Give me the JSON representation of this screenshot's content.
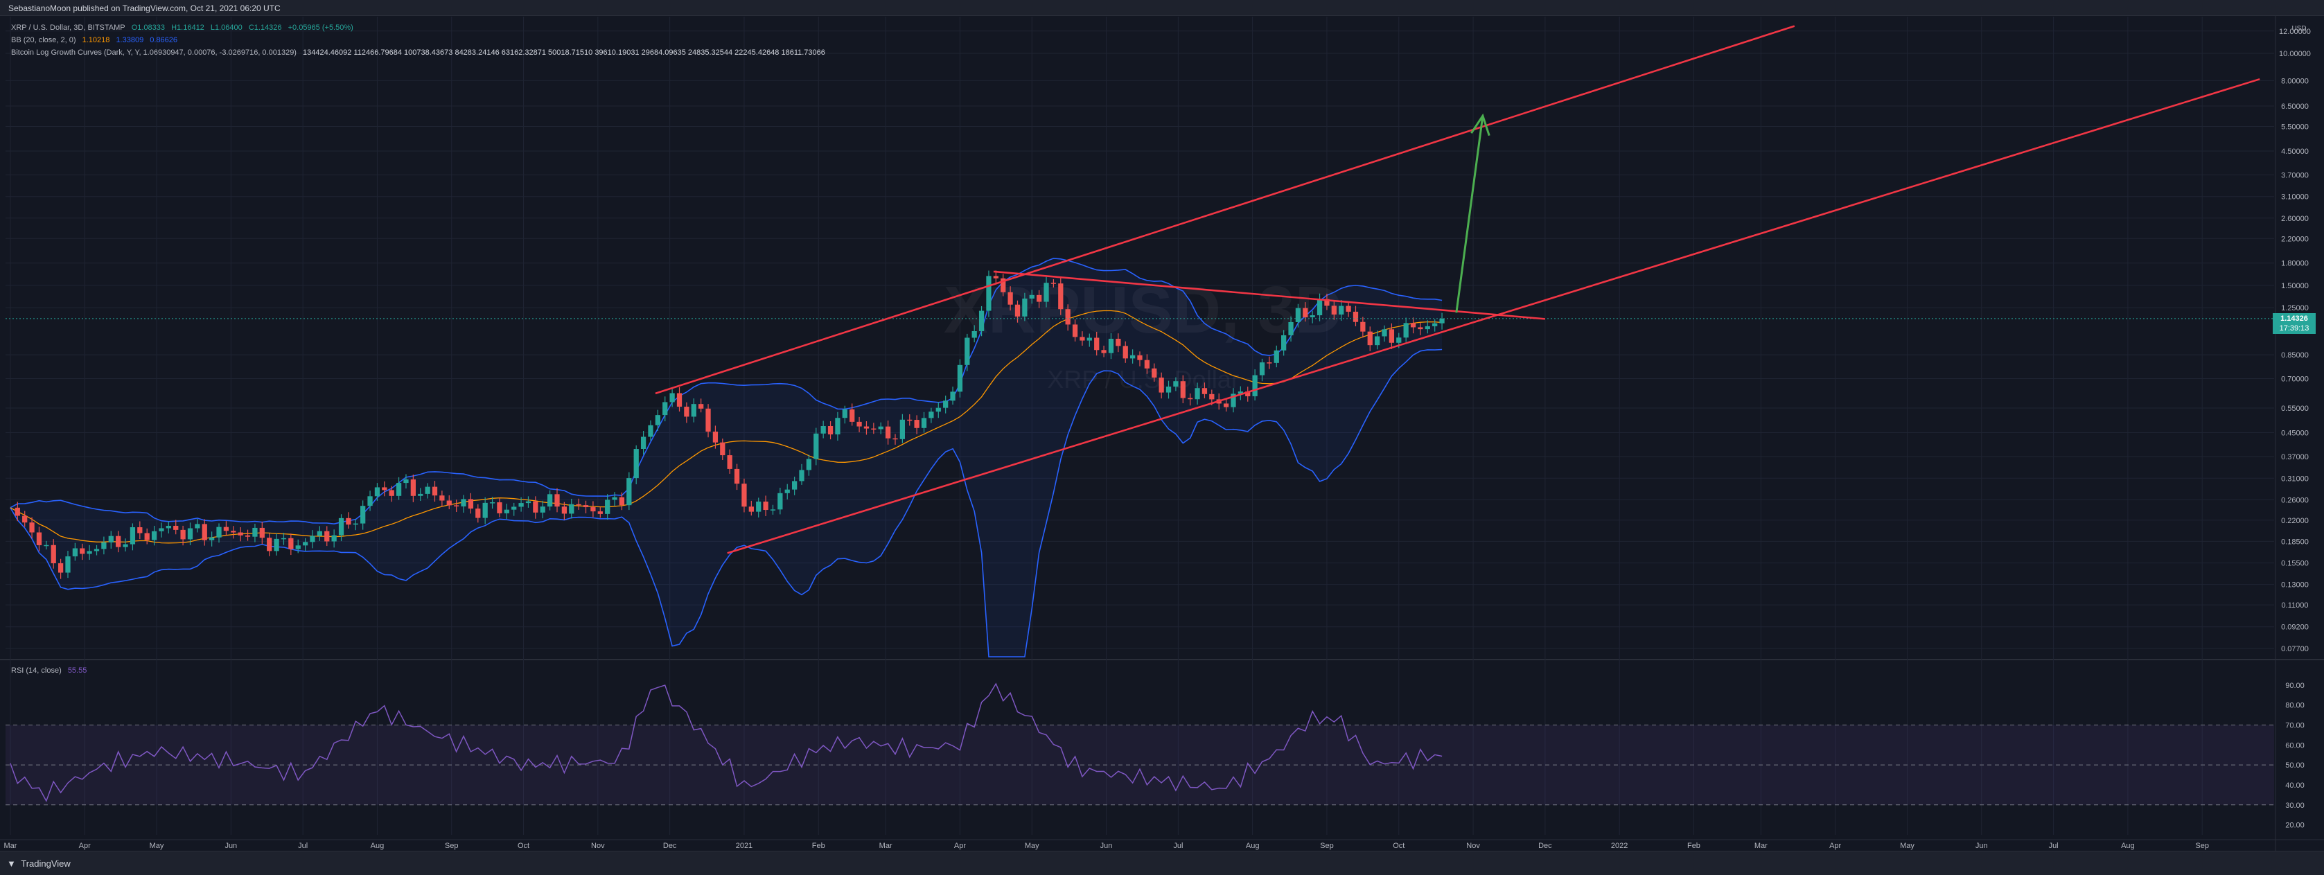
{
  "header": {
    "publisher": "SebastianoMoon published on TradingView.com, Oct 21, 2021 06:20 UTC"
  },
  "legend": {
    "symbol": "XRP / U.S. Dollar, 3D, BITSTAMP",
    "ohlc": [
      "O1.08333",
      "H1.16412",
      "L1.06400",
      "C1.14326",
      "+0.05965 (+5.50%)"
    ],
    "bb_label": "BB (20, close, 2, 0)",
    "bb_values": [
      "1.10218",
      "1.33809",
      "0.86626"
    ],
    "curves_label": "Bitcoin Log Growth Curves (Dark, Y, Y, 1.06930947, 0.00076, -3.0269716, 0.001329)",
    "curves_values": "134424.46092 112466.79684 100738.43673 84283.24146 63162.32871 50018.71510 39610.19031 29684.09635 24835.32544 22245.42648 18611.73066"
  },
  "rsi": {
    "label": "RSI (14, close)",
    "value": "55.55"
  },
  "watermark": {
    "line1": "XRPUSD, 3D",
    "line2": "XRP / U.S. Dollar"
  },
  "price_badge": {
    "price": "1.14326",
    "countdown": "17:39:13"
  },
  "footer": {
    "brand": "TradingView"
  },
  "colors": {
    "background": "#131722",
    "up": "#26a69a",
    "down": "#ef5350",
    "bb_band": "#2962ff",
    "bb_basis": "#ff9800",
    "trendline": "#f23645",
    "arrow": "#4caf50",
    "rsi": "#7e57c2"
  },
  "chart_data": {
    "type": "candlestick",
    "title": "XRP / U.S. Dollar, 3D, BITSTAMP",
    "y_scale": "log",
    "currency": "USD",
    "y_axis_ticks": [
      "12.00000",
      "10.00000",
      "8.00000",
      "6.50000",
      "5.50000",
      "4.50000",
      "3.70000",
      "3.10000",
      "2.60000",
      "2.20000",
      "1.80000",
      "1.50000",
      "1.25000",
      "0.85000",
      "0.70000",
      "0.55000",
      "0.45000",
      "0.37000",
      "0.31000",
      "0.26000",
      "0.22000",
      "0.18500",
      "0.15500",
      "0.13000",
      "0.11000",
      "0.09200",
      "0.07700"
    ],
    "x_axis_ticks": [
      "Mar",
      "Apr",
      "May",
      "Jun",
      "Jul",
      "Aug",
      "Sep",
      "Oct",
      "Nov",
      "Dec",
      "2021",
      "Feb",
      "Mar",
      "Apr",
      "May",
      "Jun",
      "Jul",
      "Aug",
      "Sep",
      "Oct",
      "Nov",
      "Dec",
      "2022",
      "Feb",
      "Mar",
      "Apr",
      "May",
      "Jun",
      "Jul",
      "Aug",
      "Sep"
    ],
    "close_series": [
      [
        "2020-03-01",
        0.235
      ],
      [
        "2020-03-10",
        0.205
      ],
      [
        "2020-03-19",
        0.152
      ],
      [
        "2020-04-01",
        0.172
      ],
      [
        "2020-04-20",
        0.192
      ],
      [
        "2020-05-05",
        0.205
      ],
      [
        "2020-05-20",
        0.198
      ],
      [
        "2020-06-05",
        0.2
      ],
      [
        "2020-06-25",
        0.178
      ],
      [
        "2020-07-10",
        0.195
      ],
      [
        "2020-07-20",
        0.212
      ],
      [
        "2020-08-01",
        0.282
      ],
      [
        "2020-08-15",
        0.29
      ],
      [
        "2020-09-05",
        0.245
      ],
      [
        "2020-09-20",
        0.242
      ],
      [
        "2020-10-10",
        0.252
      ],
      [
        "2020-10-30",
        0.24
      ],
      [
        "2020-11-10",
        0.255
      ],
      [
        "2020-11-21",
        0.46
      ],
      [
        "2020-11-30",
        0.595
      ],
      [
        "2020-12-15",
        0.52
      ],
      [
        "2020-12-28",
        0.3
      ],
      [
        "2021-01-05",
        0.23
      ],
      [
        "2021-01-20",
        0.28
      ],
      [
        "2021-02-01",
        0.44
      ],
      [
        "2021-02-10",
        0.52
      ],
      [
        "2021-03-01",
        0.44
      ],
      [
        "2021-03-25",
        0.55
      ],
      [
        "2021-04-05",
        0.95
      ],
      [
        "2021-04-14",
        1.65
      ],
      [
        "2021-04-25",
        1.2
      ],
      [
        "2021-05-08",
        1.55
      ],
      [
        "2021-05-20",
        0.95
      ],
      [
        "2021-06-10",
        0.88
      ],
      [
        "2021-06-25",
        0.65
      ],
      [
        "2021-07-15",
        0.6
      ],
      [
        "2021-07-22",
        0.56
      ],
      [
        "2021-08-05",
        0.75
      ],
      [
        "2021-08-20",
        1.2
      ],
      [
        "2021-09-06",
        1.28
      ],
      [
        "2021-09-20",
        0.95
      ],
      [
        "2021-10-01",
        1.02
      ],
      [
        "2021-10-21",
        1.143
      ]
    ],
    "last_ohlc": {
      "open": 1.08333,
      "high": 1.16412,
      "low": 1.064,
      "close": 1.14326
    },
    "rsi_series": [
      [
        "2020-03-01",
        47
      ],
      [
        "2020-03-15",
        35
      ],
      [
        "2020-04-10",
        50
      ],
      [
        "2020-05-01",
        57
      ],
      [
        "2020-06-01",
        52
      ],
      [
        "2020-07-01",
        45
      ],
      [
        "2020-08-01",
        78
      ],
      [
        "2020-08-25",
        65
      ],
      [
        "2020-10-01",
        50
      ],
      [
        "2020-11-10",
        52
      ],
      [
        "2020-11-25",
        92
      ],
      [
        "2020-12-10",
        72
      ],
      [
        "2021-01-02",
        38
      ],
      [
        "2021-02-01",
        58
      ],
      [
        "2021-02-15",
        62
      ],
      [
        "2021-03-10",
        58
      ],
      [
        "2021-04-01",
        60
      ],
      [
        "2021-04-15",
        90
      ],
      [
        "2021-05-01",
        72
      ],
      [
        "2021-05-20",
        48
      ],
      [
        "2021-06-25",
        42
      ],
      [
        "2021-07-20",
        38
      ],
      [
        "2021-08-10",
        55
      ],
      [
        "2021-08-25",
        73
      ],
      [
        "2021-09-06",
        73
      ],
      [
        "2021-09-20",
        50
      ],
      [
        "2021-10-21",
        55.55
      ]
    ],
    "rsi_axis_ticks": [
      "90.00",
      "80.00",
      "70.00",
      "60.00",
      "50.00",
      "40.00",
      "30.00",
      "20.00"
    ],
    "rsi_bands": [
      70,
      50,
      30
    ],
    "trendlines": [
      {
        "name": "channel_upper",
        "from": [
          "2020-11-25",
          0.62
        ],
        "to": [
          "2022-03-15",
          12.5
        ]
      },
      {
        "name": "channel_lower",
        "from": [
          "2020-12-25",
          0.168
        ],
        "to": [
          "2022-09-25",
          8.1
        ]
      },
      {
        "name": "descending_resistance",
        "from": [
          "2021-04-15",
          1.68
        ],
        "to": [
          "2021-12-01",
          1.14
        ]
      }
    ],
    "projection_arrow": {
      "from": [
        "2021-10-25",
        1.2
      ],
      "to": [
        "2021-11-05",
        6.0
      ]
    },
    "grid": true
  }
}
